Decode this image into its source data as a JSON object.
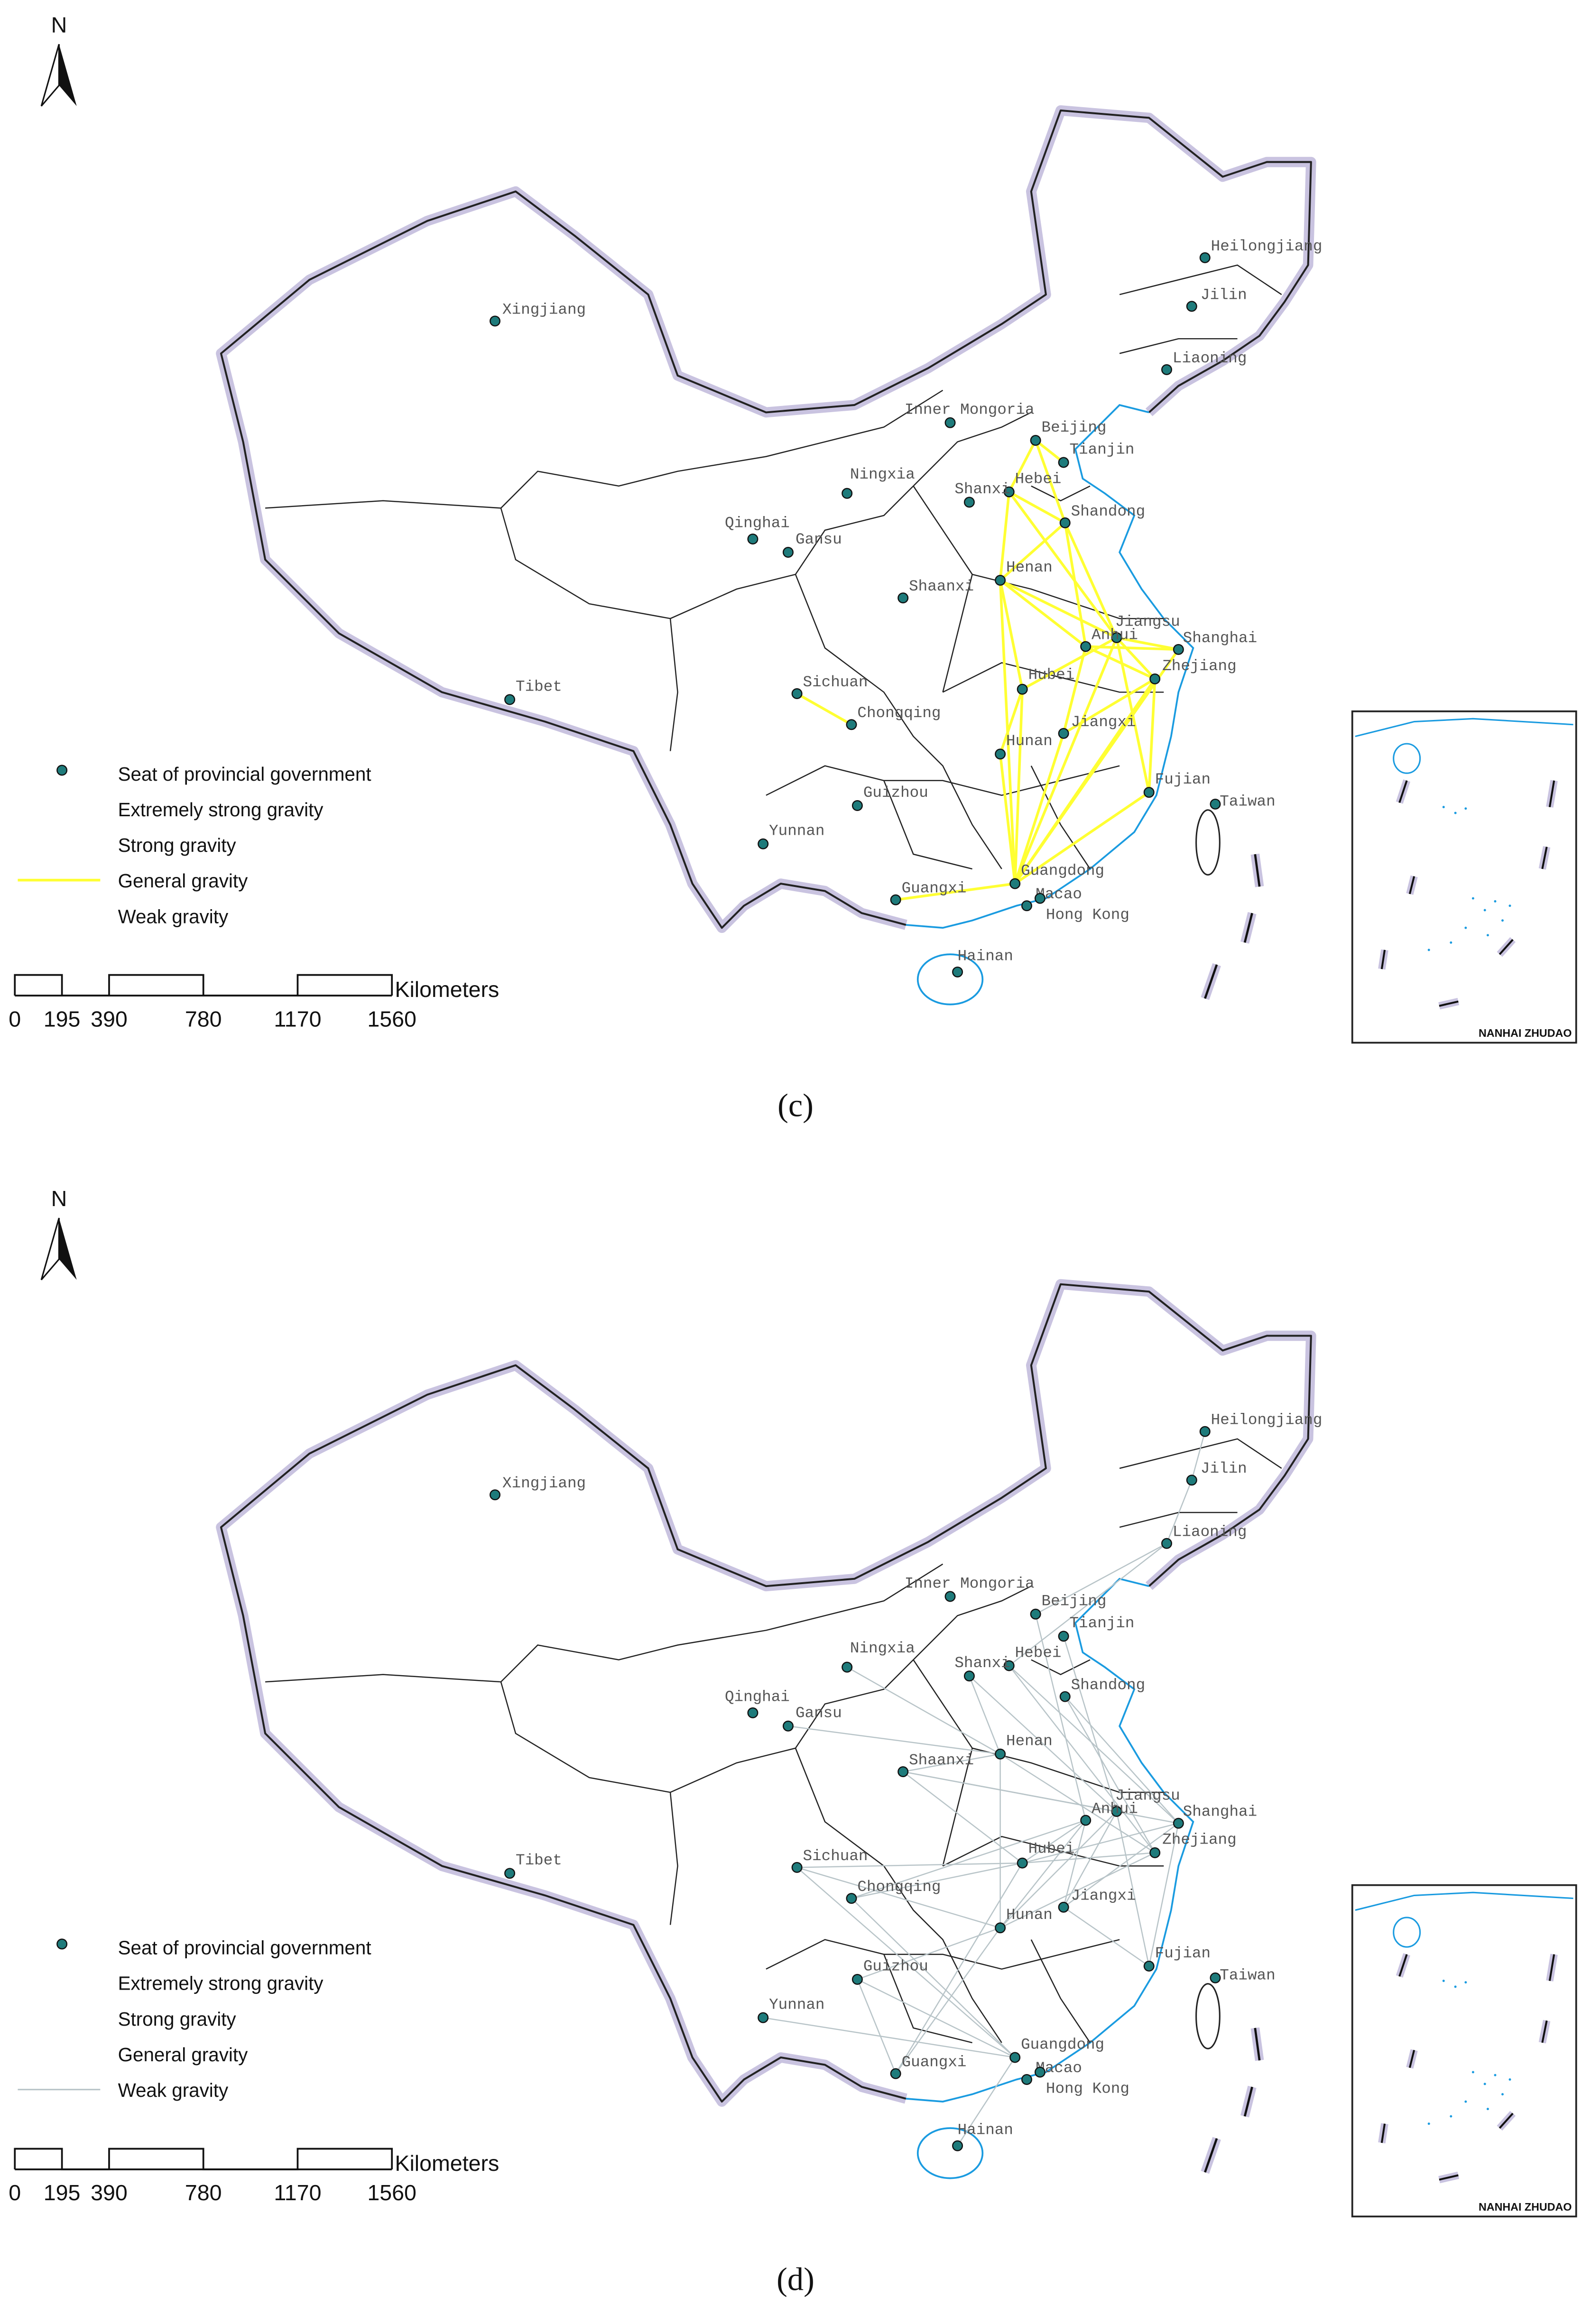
{
  "panels": [
    {
      "label": "(c)",
      "north": "N",
      "color": "#ffff33",
      "legend": [
        "Seat of provincial government",
        "Extremely strong gravity",
        "Strong gravity",
        "General gravity",
        "Weak gravity"
      ],
      "scale": {
        "ticks": [
          0,
          195,
          390,
          780,
          1170,
          1560
        ],
        "unit": "Kilometers"
      },
      "inset_label": "NANHAI ZHUDAO",
      "places": [
        "Heilongjiang",
        "Jilin",
        "Liaoning",
        "Inner Mongoria",
        "Beijing",
        "Tianjin",
        "Hebei",
        "Shanxi",
        "Shandong",
        "Ningxia",
        "Qinghai",
        "Gansu",
        "Xingjiang",
        "Henan",
        "Shaanxi",
        "Jiangsu",
        "Anhui",
        "Shanghai",
        "Zhejiang",
        "Hubei",
        "Sichuan",
        "Chongqing",
        "Tibet",
        "Hunan",
        "Jiangxi",
        "Guizhou",
        "Fujian",
        "Taiwan",
        "Yunnan",
        "Guangdong",
        "Guangxi",
        "Macao",
        "Hong Kong",
        "Hainan"
      ]
    },
    {
      "label": "(d)",
      "north": "N",
      "color": "#b8c4c8",
      "legend": [
        "Seat of provincial government",
        "Extremely strong gravity",
        "Strong gravity",
        "General gravity",
        "Weak gravity"
      ],
      "scale": {
        "ticks": [
          0,
          195,
          390,
          780,
          1170,
          1560
        ],
        "unit": "Kilometers"
      },
      "inset_label": "NANHAI ZHUDAO",
      "places": [
        "Heilongjiang",
        "Jilin",
        "Liaoning",
        "Inner Mongoria",
        "Beijing",
        "Tianjin",
        "Hebei",
        "Shanxi",
        "Shandong",
        "Ningxia",
        "Qinghai",
        "Gansu",
        "Xingjiang",
        "Henan",
        "Shaanxi",
        "Jiangsu",
        "Anhui",
        "Shanghai",
        "Zhejiang",
        "Hubei",
        "Sichuan",
        "Chongqing",
        "Tibet",
        "Hunan",
        "Jiangxi",
        "Guizhou",
        "Fujian",
        "Taiwan",
        "Yunnan",
        "Guangdong",
        "Guangxi",
        "Macao",
        "Hong Kong",
        "Hainan"
      ]
    }
  ]
}
